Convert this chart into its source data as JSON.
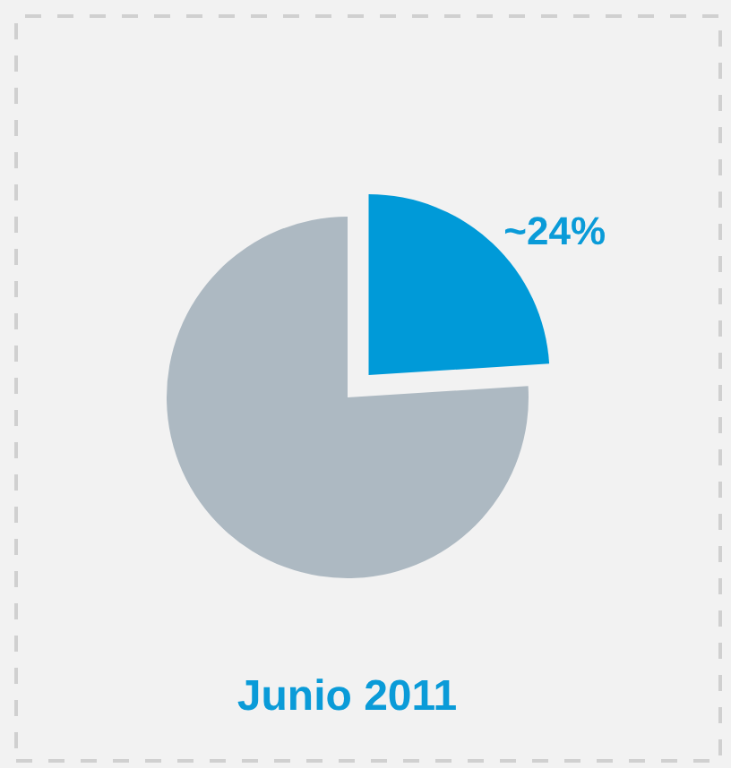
{
  "chart_data": {
    "type": "pie",
    "title": "Junio 2011",
    "categories": [
      null,
      null
    ],
    "values": [
      24,
      76
    ],
    "colors": [
      "#009ad8",
      "#adb9c2"
    ],
    "value_labels": [
      "~24%",
      null
    ],
    "legend": false
  }
}
